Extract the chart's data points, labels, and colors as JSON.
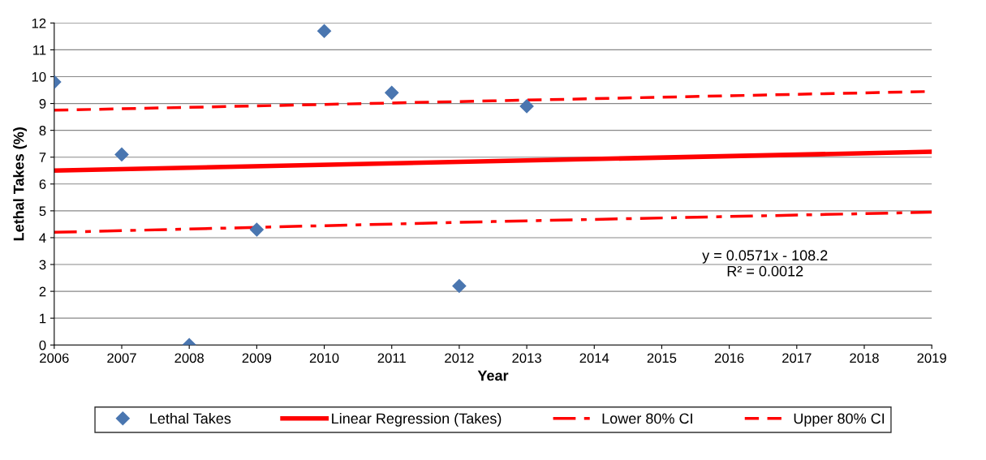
{
  "chart_data": {
    "type": "scatter",
    "xlabel": "Year",
    "ylabel": "Lethal Takes (%)",
    "xlim": [
      2006,
      2019
    ],
    "xticks": [
      2006,
      2007,
      2008,
      2009,
      2010,
      2011,
      2012,
      2013,
      2014,
      2015,
      2016,
      2017,
      2018,
      2019
    ],
    "ylim": [
      0,
      12
    ],
    "yticks": [
      0,
      1,
      2,
      3,
      4,
      5,
      6,
      7,
      8,
      9,
      10,
      11,
      12
    ],
    "grid": "y",
    "legend": "bottom",
    "annotations": [
      "y = 0.0571x - 108.2\nR² = 0.0012"
    ],
    "series": [
      {
        "name": "Lethal Takes",
        "color": "#4a76b0",
        "marker": "diamond",
        "x": [
          2006,
          2007,
          2008,
          2009,
          2010,
          2011,
          2012,
          2013
        ],
        "values": [
          9.8,
          7.1,
          0,
          4.3,
          11.7,
          9.4,
          2.2,
          8.9
        ]
      },
      {
        "name": "Linear Regression (Takes)",
        "type": "line",
        "color": "#ff0000",
        "line_style": "solid",
        "x": [
          2006,
          2019
        ],
        "values": [
          6.5,
          7.2
        ]
      },
      {
        "name": "Lower 80% CI",
        "type": "line",
        "color": "#ff0000",
        "line_style": "dashdot",
        "x": [
          2006,
          2012.5,
          2019
        ],
        "values": [
          4.2,
          4.6,
          4.95
        ]
      },
      {
        "name": "Upper 80% CI",
        "type": "line",
        "color": "#ff0000",
        "line_style": "dashed",
        "x": [
          2006,
          2012.5,
          2019
        ],
        "values": [
          8.75,
          9.1,
          9.45
        ]
      }
    ]
  }
}
